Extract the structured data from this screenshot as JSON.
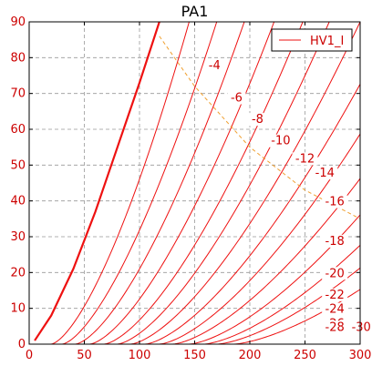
{
  "chart_data": {
    "type": "line",
    "title": "PA1",
    "xlim": [
      0,
      300
    ],
    "ylim": [
      0,
      90
    ],
    "x_ticks": [
      "0",
      "50",
      "100",
      "150",
      "200",
      "250",
      "300"
    ],
    "y_ticks": [
      "0",
      "10",
      "20",
      "30",
      "40",
      "50",
      "60",
      "70",
      "80",
      "90"
    ],
    "grid": true,
    "legend": {
      "entries": [
        "HV1_I"
      ],
      "placement": "top-right"
    },
    "colors": {
      "curve": "#ee1111",
      "axis_text": "#cc0000",
      "grid": "#999999",
      "load_line": "#f0a030"
    },
    "bold_curve": {
      "x": [
        5,
        20,
        40,
        60,
        80,
        100,
        118
      ],
      "y": [
        1,
        8,
        21,
        37,
        55,
        73,
        90
      ]
    },
    "load_line": {
      "x": [
        118,
        150,
        200,
        250,
        300
      ],
      "y": [
        86,
        72,
        55,
        43,
        35
      ]
    },
    "series": [
      {
        "label": "-4",
        "x0": 20,
        "x_at_90": 145
      },
      {
        "label": "-6",
        "x0": 30,
        "x_at_90": 170
      },
      {
        "label": "-8",
        "x0": 42,
        "x_at_90": 195
      },
      {
        "label": "-10",
        "x0": 55,
        "x_at_90": 222
      },
      {
        "label": "-12",
        "x0": 68,
        "x_at_90": 248
      },
      {
        "label": "-14",
        "x0": 80,
        "x_at_90": 272
      },
      {
        "label": "-16",
        "x0": 92,
        "x_at_90": 300
      },
      {
        "label": "-18",
        "x0": 105,
        "x_at_90": 330
      },
      {
        "label": "-20",
        "x0": 118,
        "x_at_90": 360
      },
      {
        "label": "-22",
        "x0": 130,
        "x_at_90": 395
      },
      {
        "label": "-24",
        "x0": 145,
        "x_at_90": 430
      },
      {
        "label": "-26",
        "x0": 158,
        "x_at_90": 470
      },
      {
        "label": "-28",
        "x0": 170,
        "x_at_90": 510
      },
      {
        "label": "-30",
        "x0": 185,
        "x_at_90": 560
      }
    ],
    "series_labels": [
      {
        "text": "-4",
        "x": 168,
        "y": 77
      },
      {
        "text": "-6",
        "x": 188,
        "y": 68
      },
      {
        "text": "-8",
        "x": 207,
        "y": 62
      },
      {
        "text": "-10",
        "x": 228,
        "y": 56
      },
      {
        "text": "-12",
        "x": 250,
        "y": 51
      },
      {
        "text": "-14",
        "x": 268,
        "y": 47
      },
      {
        "text": "-16",
        "x": 277,
        "y": 39
      },
      {
        "text": "-18",
        "x": 277,
        "y": 28
      },
      {
        "text": "-20",
        "x": 277,
        "y": 19
      },
      {
        "text": "-22",
        "x": 277,
        "y": 13
      },
      {
        "text": "-24",
        "x": 277,
        "y": 9
      },
      {
        "text": "-26",
        "x": 277,
        "y": 5
      },
      {
        "text": "-28",
        "x": 277,
        "y": 4
      },
      {
        "text": "-30",
        "x": 301,
        "y": 4
      }
    ]
  }
}
